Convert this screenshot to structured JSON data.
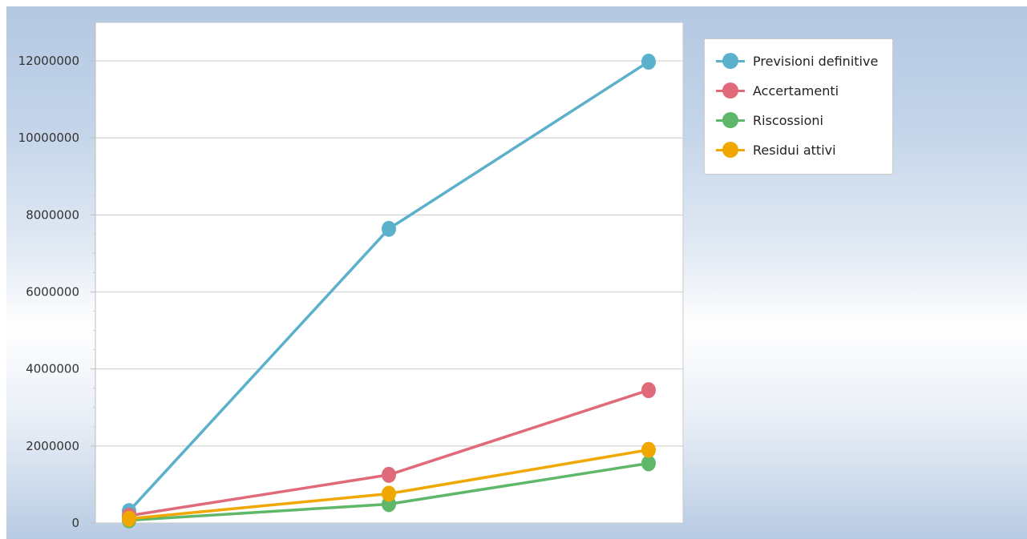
{
  "chart_data": {
    "type": "line",
    "title": "",
    "xlabel": "",
    "ylabel": "",
    "x": [
      1,
      2,
      3
    ],
    "ylim": [
      0,
      13000000
    ],
    "yticks": [
      0,
      2000000,
      4000000,
      6000000,
      8000000,
      10000000,
      12000000
    ],
    "grid": true,
    "legend_position": "top-right",
    "series": [
      {
        "name": "Previsioni definitive",
        "color": "#5bb1cb",
        "values": [
          310000,
          7640000,
          11980000
        ]
      },
      {
        "name": "Accertamenti",
        "color": "#e06a7a",
        "values": [
          190000,
          1250000,
          3450000
        ]
      },
      {
        "name": "Riscossioni",
        "color": "#5fb86a",
        "values": [
          70000,
          490000,
          1550000
        ]
      },
      {
        "name": "Residui attivi",
        "color": "#f0a800",
        "values": [
          110000,
          760000,
          1900000
        ]
      }
    ]
  }
}
